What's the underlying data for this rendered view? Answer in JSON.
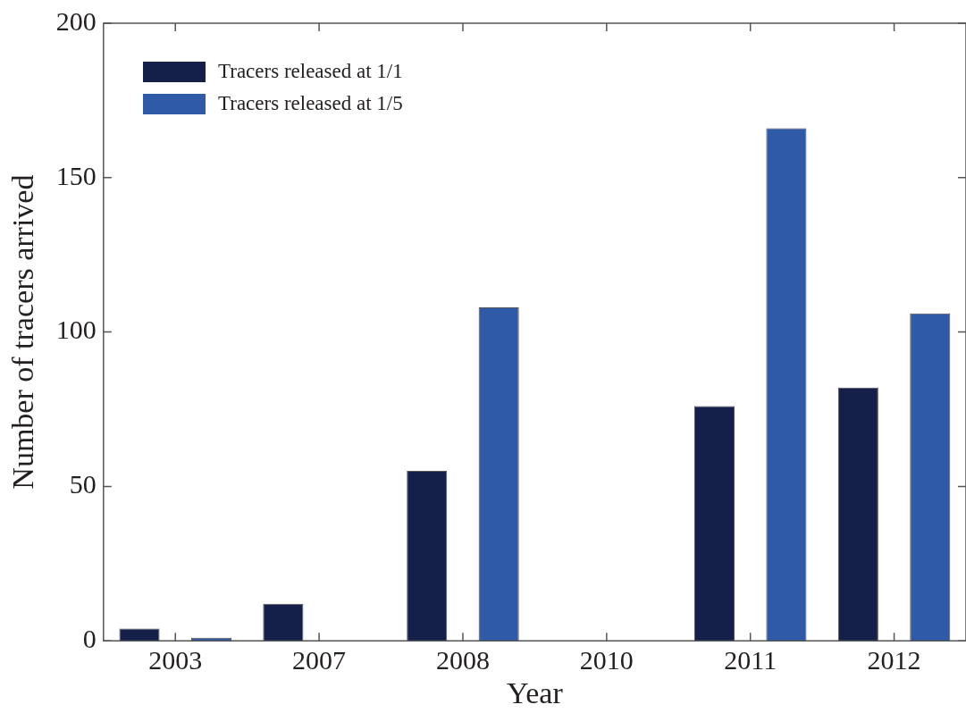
{
  "chart_data": {
    "type": "bar",
    "xlabel": "Year",
    "ylabel": "Number of tracers arrived",
    "categories": [
      "2003",
      "2007",
      "2008",
      "2010",
      "2011",
      "2012"
    ],
    "series": [
      {
        "name": "Tracers released at 1/1",
        "color": "#15204a",
        "values": [
          4,
          12,
          55,
          0,
          76,
          82
        ]
      },
      {
        "name": "Tracers released at 1/5",
        "color": "#2e5aa8",
        "values": [
          1,
          0,
          108,
          0,
          166,
          106
        ]
      }
    ],
    "ylim": [
      0,
      200
    ],
    "yticks": [
      0,
      50,
      100,
      150,
      200
    ],
    "grid": false,
    "legend": "top left"
  }
}
